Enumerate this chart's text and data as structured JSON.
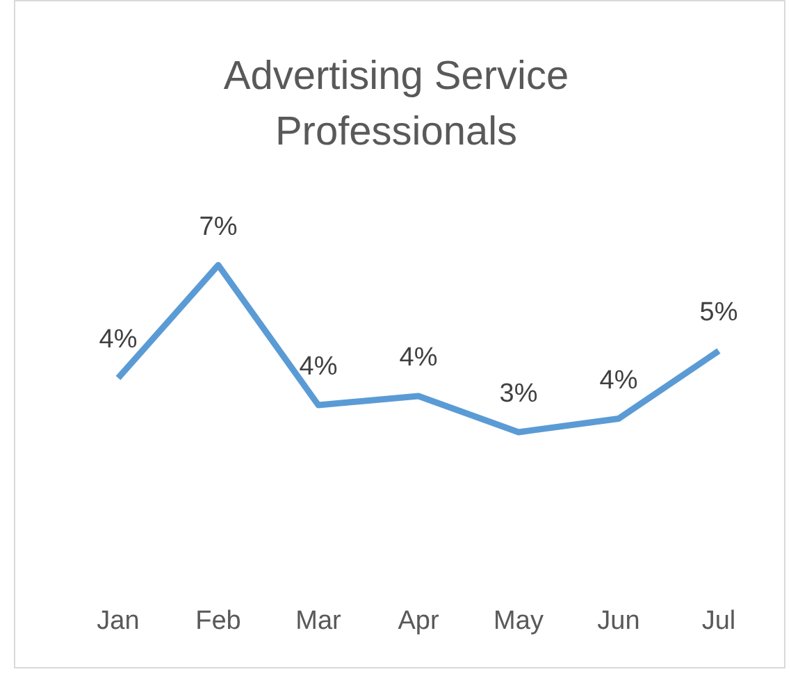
{
  "chart_data": {
    "type": "line",
    "title": "Advertising Service Professionals",
    "categories": [
      "Jan",
      "Feb",
      "Mar",
      "Apr",
      "May",
      "Jun",
      "Jul"
    ],
    "series": [
      {
        "color": "#5b9bd5",
        "values": [
          4.4,
          6.9,
          3.8,
          4.0,
          3.2,
          3.5,
          5.0
        ],
        "value_labels": [
          "4%",
          "7%",
          "4%",
          "4%",
          "3%",
          "4%",
          "5%"
        ]
      }
    ],
    "tick_labels": "x",
    "grid": false,
    "legend": false,
    "marker": "none",
    "line_style": "solid"
  }
}
